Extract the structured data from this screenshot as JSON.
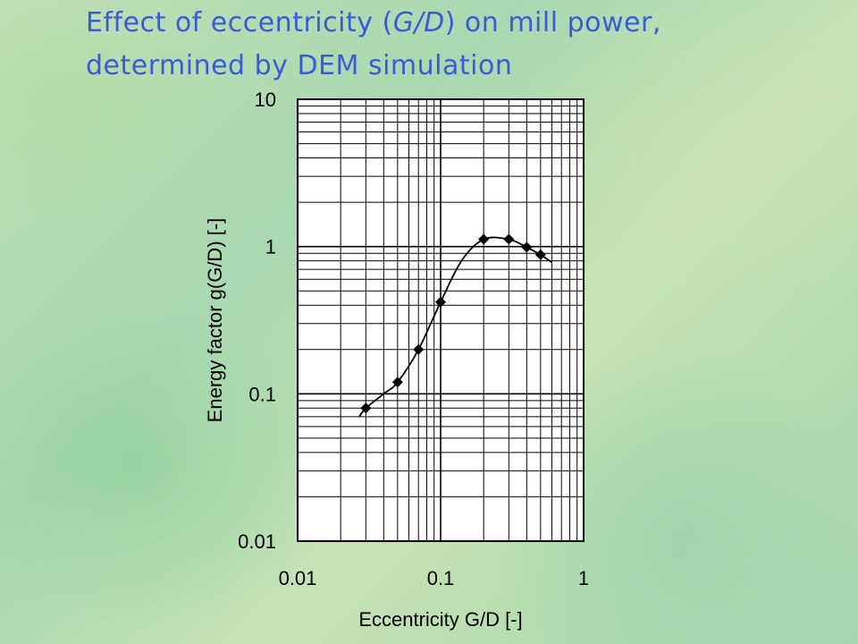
{
  "slide": {
    "title_line1": "Effect of eccentricity (",
    "title_italic": "G/D",
    "title_line1_end": ") on mill power,",
    "title_line2": "determined by DEM simulation"
  },
  "colors": {
    "title": "#3a5bd6",
    "plot_background": "#ffffff",
    "ink": "#000000"
  },
  "chart_data": {
    "type": "scatter",
    "title": "",
    "xlabel": "Eccentricity G/D  [-]",
    "ylabel": "Energy factor  g(G/D)  [-]",
    "x_scale": "log",
    "y_scale": "log",
    "xlim": [
      0.01,
      1
    ],
    "ylim": [
      0.01,
      10
    ],
    "x_ticks": [
      "0.01",
      "0.1",
      "1"
    ],
    "y_ticks": [
      "10",
      "1",
      "0.1",
      "0.01"
    ],
    "grid": true,
    "legend": "none",
    "series": [
      {
        "marker": "diamond",
        "line": "smooth",
        "points": [
          {
            "x": 0.03,
            "y": 0.08
          },
          {
            "x": 0.05,
            "y": 0.12
          },
          {
            "x": 0.07,
            "y": 0.2
          },
          {
            "x": 0.1,
            "y": 0.42
          },
          {
            "x": 0.2,
            "y": 1.12
          },
          {
            "x": 0.3,
            "y": 1.12
          },
          {
            "x": 0.4,
            "y": 0.99
          },
          {
            "x": 0.5,
            "y": 0.88
          }
        ],
        "curve": [
          {
            "x": 0.027,
            "y": 0.07
          },
          {
            "x": 0.03,
            "y": 0.08
          },
          {
            "x": 0.04,
            "y": 0.1
          },
          {
            "x": 0.05,
            "y": 0.12
          },
          {
            "x": 0.07,
            "y": 0.2
          },
          {
            "x": 0.1,
            "y": 0.42
          },
          {
            "x": 0.14,
            "y": 0.8
          },
          {
            "x": 0.2,
            "y": 1.12
          },
          {
            "x": 0.3,
            "y": 1.12
          },
          {
            "x": 0.4,
            "y": 0.99
          },
          {
            "x": 0.5,
            "y": 0.88
          },
          {
            "x": 0.6,
            "y": 0.78
          }
        ]
      }
    ]
  }
}
